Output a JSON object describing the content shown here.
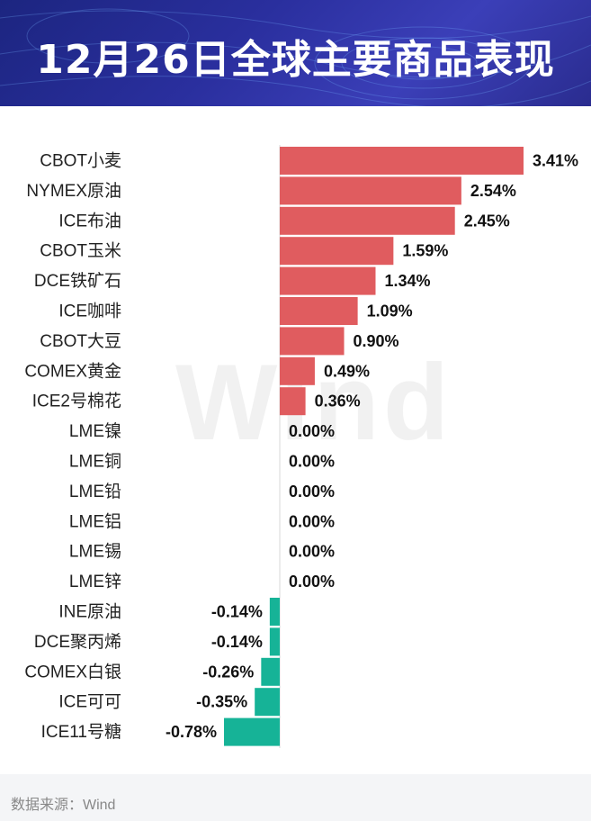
{
  "title": "12月26日全球主要商品表现",
  "watermark": "Wind",
  "source": "数据来源：Wind",
  "colors": {
    "positive": "#e05c5f",
    "negative": "#16b397",
    "header": "#2a2f9e"
  },
  "chart_data": {
    "type": "bar",
    "orientation": "horizontal",
    "title": "12月26日全球主要商品表现",
    "xlabel": "",
    "ylabel": "",
    "unit": "%",
    "xlim": [
      -0.78,
      3.41
    ],
    "categories": [
      "CBOT小麦",
      "NYMEX原油",
      "ICE布油",
      "CBOT玉米",
      "DCE铁矿石",
      "ICE咖啡",
      "CBOT大豆",
      "COMEX黄金",
      "ICE2号棉花",
      "LME镍",
      "LME铜",
      "LME铅",
      "LME铝",
      "LME锡",
      "LME锌",
      "INE原油",
      "DCE聚丙烯",
      "COMEX白银",
      "ICE可可",
      "ICE11号糖"
    ],
    "values": [
      3.41,
      2.54,
      2.45,
      1.59,
      1.34,
      1.09,
      0.9,
      0.49,
      0.36,
      0.0,
      0.0,
      0.0,
      0.0,
      0.0,
      0.0,
      -0.14,
      -0.14,
      -0.26,
      -0.35,
      -0.78
    ],
    "labels": [
      "3.41%",
      "2.54%",
      "2.45%",
      "1.59%",
      "1.34%",
      "1.09%",
      "0.90%",
      "0.49%",
      "0.36%",
      "0.00%",
      "0.00%",
      "0.00%",
      "0.00%",
      "0.00%",
      "0.00%",
      "-0.14%",
      "-0.14%",
      "-0.26%",
      "-0.35%",
      "-0.78%"
    ]
  }
}
